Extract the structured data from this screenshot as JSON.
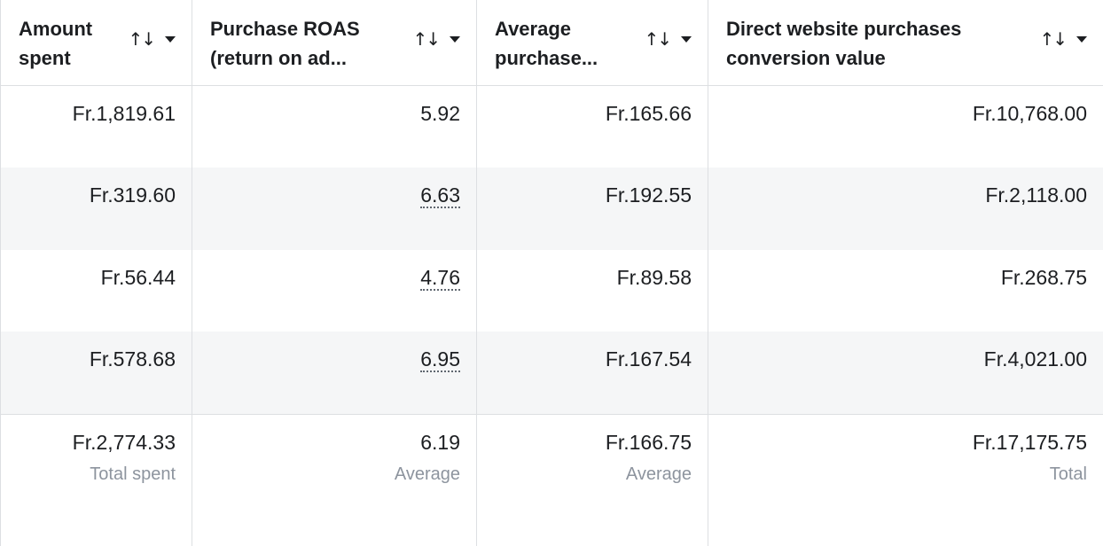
{
  "headers": [
    {
      "title": "Amount\nspent"
    },
    {
      "title": "Purchase ROAS\n(return on ad..."
    },
    {
      "title": "Average\npurchase..."
    },
    {
      "title": "Direct website purchases\nconversion value"
    }
  ],
  "icons": {
    "sort": "sort-arrows-icon",
    "dropdown": "caret-down-icon"
  },
  "rows": [
    [
      "Fr.1,819.61",
      "5.92",
      "Fr.165.66",
      "Fr.10,768.00"
    ],
    [
      "Fr.319.60",
      "6.63",
      "Fr.192.55",
      "Fr.2,118.00"
    ],
    [
      "Fr.56.44",
      "4.76",
      "Fr.89.58",
      "Fr.268.75"
    ],
    [
      "Fr.578.68",
      "6.95",
      "Fr.167.54",
      "Fr.4,021.00"
    ]
  ],
  "totals": [
    {
      "value": "Fr.2,774.33",
      "label": "Total spent"
    },
    {
      "value": "6.19",
      "label": "Average"
    },
    {
      "value": "Fr.166.75",
      "label": "Average"
    },
    {
      "value": "Fr.17,175.75",
      "label": "Total"
    }
  ],
  "colors": {
    "border": "#dddfe2",
    "stripe": "#f5f6f7",
    "muted": "#8d949e",
    "text": "#1c1e21"
  }
}
